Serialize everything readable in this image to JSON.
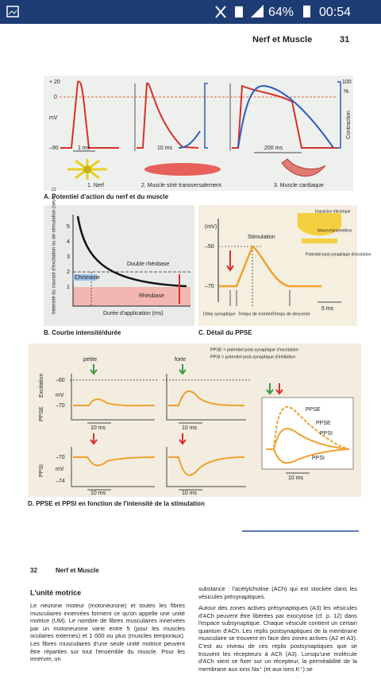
{
  "status_bar": {
    "battery": "64%",
    "time": "00:54"
  },
  "page_31": {
    "header": {
      "title": "Nerf et Muscle",
      "page": "31"
    },
    "panel_a": {
      "y_ticks_left": [
        "+ 20",
        "0",
        "mV",
        "–90"
      ],
      "y_ticks_right": [
        "100",
        "%",
        "Contraction"
      ],
      "scales": [
        "1 ms",
        "10 ms",
        "200 ms"
      ],
      "labels": [
        "1. Nerf",
        "2. Muscle strié transversalement",
        "3. Muscle cardiaque"
      ],
      "caption": "A. Potentiel d'action du nerf et du muscle"
    },
    "panel_b": {
      "y_axis": "Intensité du courant d'excitation ou de stimulation (seuil = 1)",
      "y_ticks": [
        "5",
        "4",
        "3",
        "2",
        "1"
      ],
      "labels": [
        "Double rhéobase",
        "Chronaxie",
        "Rhéobase",
        "Durée d'application (ms)"
      ],
      "caption": "B. Courbe intensité/durée"
    },
    "panel_c": {
      "unit": "(mV)",
      "y_ticks": [
        "–50",
        "–70"
      ],
      "labels": [
        "Stimulation",
        "Impulsion électrique",
        "Neuro-transmetteur",
        "Potentiel post-synaptique d'excitation",
        "Délai synaptique",
        "Temps de montée",
        "Temps de descente",
        "5 ms"
      ],
      "caption": "C. Détail du PPSE"
    },
    "panel_d": {
      "legend": [
        "PPSE = potentiel post-synaptique d'excitation",
        "PPSI = potentiel post-synaptique d'inhibition"
      ],
      "stim_labels": [
        "petite",
        "forte"
      ],
      "row_labels": [
        "Excitation",
        "PPSE",
        "PPSI"
      ],
      "ticks_top": [
        "–60",
        "mV",
        "–70"
      ],
      "ticks_bottom": [
        "–70",
        "mV",
        "–74"
      ],
      "scale": "10 ms",
      "curve_labels": [
        "PPSE",
        "PPSE",
        "PPSI",
        "PPSI"
      ],
      "caption": "D. PPSE et PPSI en fonction de l'intensité de la stimulation"
    }
  },
  "page_32": {
    "header": {
      "page": "32",
      "title": "Nerf et Muscle"
    },
    "section_title": "L'unité motrice",
    "left_text": "Le neurone moteur (motoneurone) et toutes les fibres musculaires innervées forment ce qu'on appelle une unité motrice (UM). Le nombre de fibres musculaires innervées par un motoneurone varie entre 5 (pour les muscles oculaires externes) et 1 000 ou plus (muscles temporaux). Les fibres musculaires d'une seule unité motrice peuvent être réparties sur tout l'ensemble du muscle. Pour les innerver, un",
    "right_text": [
      "substance : l'acétylcholine (ACh) qui est stockée dans les vésicules présynaptiques.",
      "Autour des zones actives présynaptiques (A3) les vésicules d'ACh peuvent être libérées par exocytose (cf. p. 12) dans l'espace subsynaptique. Chaque vésicule contient un certain quantum d'ACh. Les replis postsynaptiques de la membrane musculaire se trouvent en face des zones actives (A2 et A3). C'est au niveau de ces replis postsynaptiques que se trouvent les récepteurs à ACh (A3). Lorsqu'une molécule d'ACh vient se fixer sur un récepteur, la perméabilité de la membrane aux ions Na⁺ (et aux ions K⁺) se"
    ]
  }
}
